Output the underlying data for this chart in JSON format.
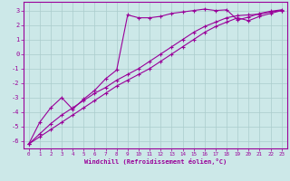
{
  "xlabel": "Windchill (Refroidissement éolien,°C)",
  "background_color": "#cce8e8",
  "line_color": "#990099",
  "xlim": [
    -0.5,
    23.5
  ],
  "ylim": [
    -6.5,
    3.6
  ],
  "xticks": [
    0,
    1,
    2,
    3,
    4,
    5,
    6,
    7,
    8,
    9,
    10,
    11,
    12,
    13,
    14,
    15,
    16,
    17,
    18,
    19,
    20,
    21,
    22,
    23
  ],
  "yticks": [
    -6,
    -5,
    -4,
    -3,
    -2,
    -1,
    0,
    1,
    2,
    3
  ],
  "grid_color": "#aacccc",
  "curve1_x": [
    0,
    1,
    2,
    3,
    4,
    5,
    6,
    7,
    8,
    9,
    10,
    11,
    12,
    13,
    14,
    15,
    16,
    17,
    18,
    19,
    20,
    21,
    22,
    23
  ],
  "curve1_y": [
    -6.2,
    -4.7,
    -3.7,
    -3.0,
    -3.8,
    -3.1,
    -2.5,
    -1.7,
    -1.1,
    2.7,
    2.5,
    2.5,
    2.6,
    2.8,
    2.9,
    3.0,
    3.1,
    3.0,
    3.05,
    2.35,
    2.55,
    2.8,
    2.95,
    3.05
  ],
  "curve2_x": [
    0,
    1,
    2,
    3,
    4,
    5,
    6,
    7,
    8,
    9,
    10,
    11,
    12,
    13,
    14,
    15,
    16,
    17,
    18,
    19,
    20,
    21,
    22,
    23
  ],
  "curve2_y": [
    -6.2,
    -5.5,
    -4.8,
    -4.2,
    -3.7,
    -3.2,
    -2.7,
    -2.3,
    -1.8,
    -1.4,
    -1.0,
    -0.5,
    0.0,
    0.5,
    1.0,
    1.5,
    1.9,
    2.2,
    2.5,
    2.65,
    2.7,
    2.75,
    2.9,
    3.0
  ],
  "curve3_x": [
    0,
    1,
    2,
    3,
    4,
    5,
    6,
    7,
    8,
    9,
    10,
    11,
    12,
    13,
    14,
    15,
    16,
    17,
    18,
    19,
    20,
    21,
    22,
    23
  ],
  "curve3_y": [
    -6.2,
    -5.7,
    -5.2,
    -4.7,
    -4.2,
    -3.7,
    -3.2,
    -2.7,
    -2.2,
    -1.8,
    -1.4,
    -1.0,
    -0.5,
    0.0,
    0.5,
    1.0,
    1.5,
    1.9,
    2.2,
    2.5,
    2.3,
    2.6,
    2.8,
    3.0
  ]
}
